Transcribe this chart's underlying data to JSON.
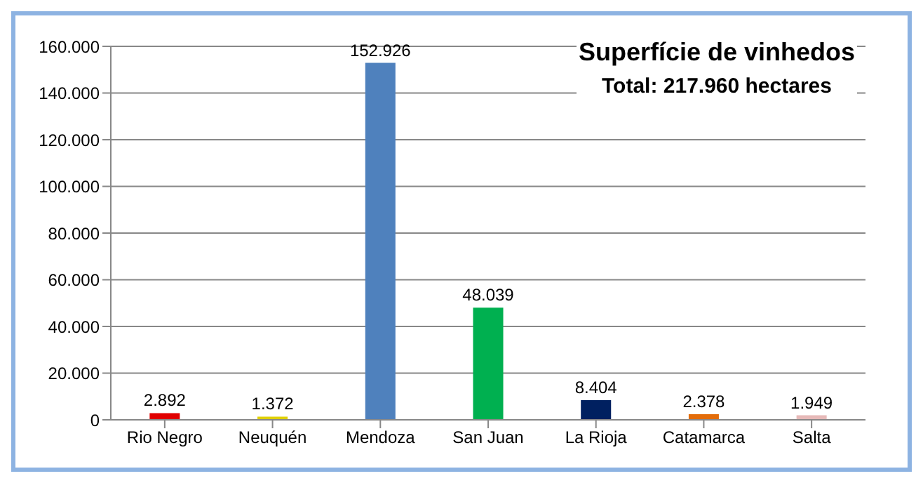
{
  "chart_data": {
    "type": "bar",
    "title": "Superfície de vinhedos",
    "subtitle": "Total: 217.960 hectares",
    "categories": [
      "Rio Negro",
      "Neuquén",
      "Mendoza",
      "San Juan",
      "La Rioja",
      "Catamarca",
      "Salta"
    ],
    "values": [
      2892,
      1372,
      152926,
      48039,
      8404,
      2378,
      1949
    ],
    "colors": [
      "#e00000",
      "#e0d000",
      "#4f81bd",
      "#00b050",
      "#002060",
      "#e36c09",
      "#e6b9b8"
    ],
    "value_labels": [
      "2.892",
      "1.372",
      "152.926",
      "48.039",
      "8.404",
      "2.378",
      "1.949"
    ],
    "ylim": [
      0,
      160000
    ],
    "yticks": [
      {
        "value": 0,
        "label": "0"
      },
      {
        "value": 20000,
        "label": "20.000"
      },
      {
        "value": 40000,
        "label": "40.000"
      },
      {
        "value": 60000,
        "label": "60.000"
      },
      {
        "value": 80000,
        "label": "80.000"
      },
      {
        "value": 100000,
        "label": "100.000"
      },
      {
        "value": 120000,
        "label": "120.000"
      },
      {
        "value": 140000,
        "label": "140.000"
      },
      {
        "value": 160000,
        "label": "160.000"
      }
    ],
    "grid": "y",
    "legend": false
  }
}
